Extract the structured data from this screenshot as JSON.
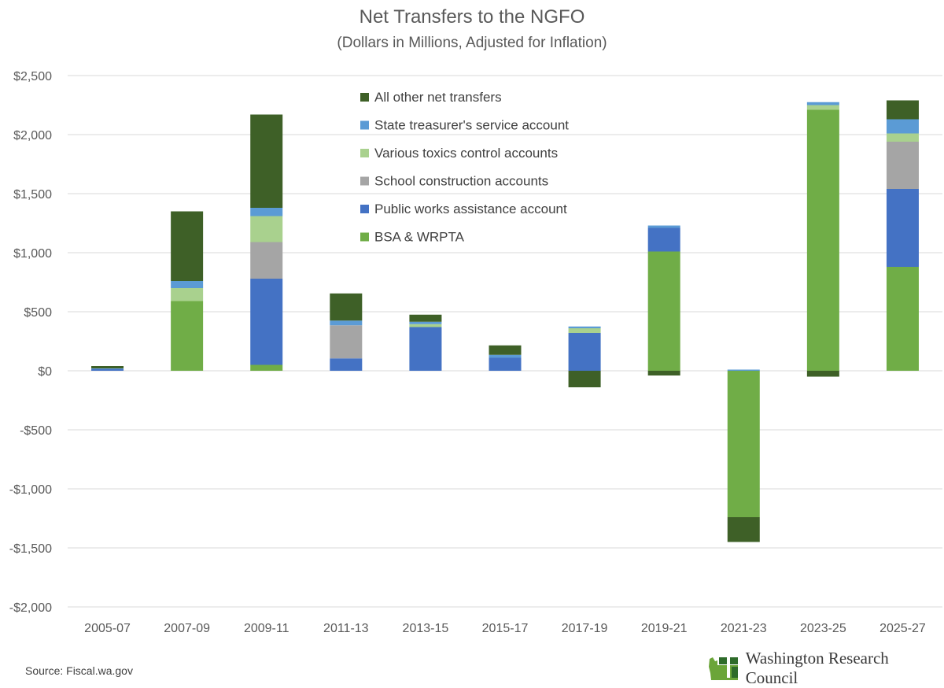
{
  "colors": {
    "bsa": "#70AD47",
    "public_works": "#4472C4",
    "school": "#A5A5A5",
    "toxics": "#A9D18E",
    "treasurer": "#5B9BD5",
    "other": "#3E6027",
    "grid": "#D9D9D9"
  },
  "footer": {
    "source": "Source: Fiscal.wa.gov",
    "logo_text": "Washington Research Council"
  },
  "chart_data": {
    "type": "bar",
    "stacked": true,
    "title": "Net Transfers to the NGFO",
    "subtitle": "(Dollars in Millions, Adjusted for Inflation)",
    "xlabel": "",
    "ylabel": "",
    "ylim": [
      -2000,
      2500
    ],
    "y_ticks": [
      2500,
      2000,
      1500,
      1000,
      500,
      0,
      -500,
      -1000,
      -1500,
      -2000
    ],
    "y_tick_labels": [
      "$2,500",
      "$2,000",
      "$1,500",
      "$1,000",
      "$500",
      "$0",
      "-$500",
      "-$1,000",
      "-$1,500",
      "-$2,000"
    ],
    "grid": true,
    "legend_position": "top-center",
    "categories": [
      "2005-07",
      "2007-09",
      "2009-11",
      "2011-13",
      "2013-15",
      "2015-17",
      "2017-19",
      "2019-21",
      "2021-23",
      "2023-25",
      "2025-27"
    ],
    "series": [
      {
        "name": "BSA & WRPTA",
        "key": "bsa",
        "values": [
          0,
          590,
          50,
          0,
          0,
          0,
          0,
          1010,
          -1240,
          2210,
          880
        ]
      },
      {
        "name": "Public works assistance account",
        "key": "public_works",
        "values": [
          15,
          0,
          730,
          105,
          370,
          110,
          320,
          200,
          0,
          0,
          660
        ]
      },
      {
        "name": "School construction accounts",
        "key": "school",
        "values": [
          0,
          0,
          310,
          280,
          0,
          0,
          0,
          0,
          0,
          0,
          400
        ]
      },
      {
        "name": "Various toxics control accounts",
        "key": "toxics",
        "values": [
          0,
          110,
          220,
          0,
          25,
          0,
          40,
          0,
          0,
          40,
          70
        ]
      },
      {
        "name": "State treasurer's service account",
        "key": "treasurer",
        "values": [
          5,
          60,
          70,
          40,
          20,
          25,
          15,
          20,
          10,
          25,
          120
        ]
      },
      {
        "name": "All other net transfers",
        "key": "other",
        "values": [
          20,
          590,
          790,
          230,
          60,
          80,
          -140,
          -40,
          -210,
          -50,
          160
        ]
      }
    ],
    "legend_order": [
      "other",
      "treasurer",
      "toxics",
      "school",
      "public_works",
      "bsa"
    ]
  }
}
